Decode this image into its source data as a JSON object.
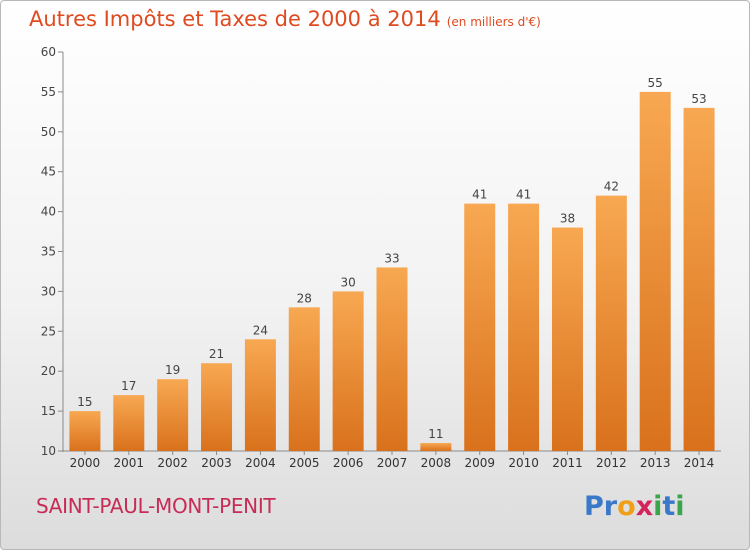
{
  "title": "Autres Impôts et Taxes de 2000 à 2014",
  "subtitle": "(en milliers d'€)",
  "commune": "SAINT-PAUL-MONT-PENIT",
  "logo": {
    "letters": [
      "P",
      "r",
      "o",
      "x",
      "i",
      "t",
      "i"
    ],
    "colors": [
      "#3a78c9",
      "#3a78c9",
      "#f0a018",
      "#d4245c",
      "#3aa54a",
      "#3a78c9",
      "#3aa54a"
    ]
  },
  "colors": {
    "title": "#e04a1f",
    "commune": "#c72c56",
    "bar_light": "#f7a650",
    "bar_dark": "#d8731f"
  },
  "chart_data": {
    "type": "bar",
    "categories": [
      "2000",
      "2001",
      "2002",
      "2003",
      "2004",
      "2005",
      "2006",
      "2007",
      "2008",
      "2009",
      "2010",
      "2011",
      "2012",
      "2013",
      "2014"
    ],
    "values": [
      15,
      17,
      19,
      21,
      24,
      28,
      30,
      33,
      11,
      41,
      41,
      38,
      42,
      55,
      53
    ],
    "ylim": [
      10,
      60
    ],
    "yticks": [
      10,
      15,
      20,
      25,
      30,
      35,
      40,
      45,
      50,
      55,
      60
    ],
    "grid": false,
    "data_labels": true
  }
}
